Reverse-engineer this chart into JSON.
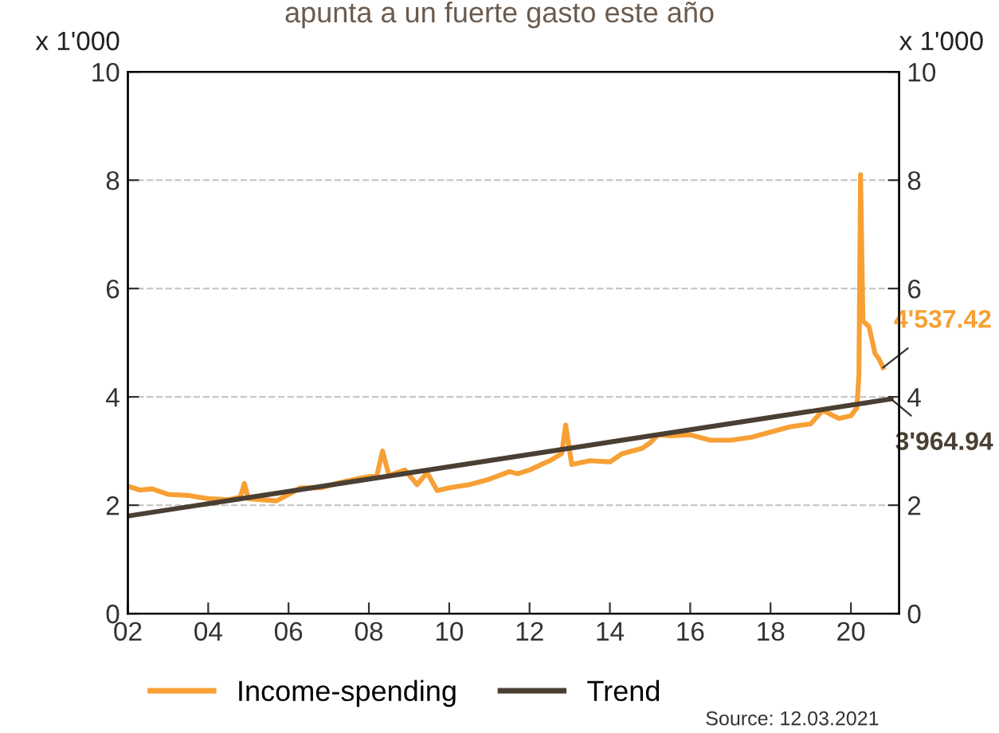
{
  "chart_data": {
    "type": "line",
    "title": "apunta a un fuerte gasto este año",
    "ylabel": "x 1'000",
    "y2label": "x 1'000",
    "xlim": [
      2002,
      2021.2
    ],
    "xticks": [
      {
        "value": 2002,
        "label": "02"
      },
      {
        "value": 2004,
        "label": "04"
      },
      {
        "value": 2006,
        "label": "06"
      },
      {
        "value": 2008,
        "label": "08"
      },
      {
        "value": 2010,
        "label": "10"
      },
      {
        "value": 2012,
        "label": "12"
      },
      {
        "value": 2014,
        "label": "14"
      },
      {
        "value": 2016,
        "label": "16"
      },
      {
        "value": 2018,
        "label": "18"
      },
      {
        "value": 2020,
        "label": "20"
      }
    ],
    "ylim": [
      0,
      10
    ],
    "yticks": [
      0,
      2,
      4,
      6,
      8,
      10
    ],
    "y2lim": [
      0,
      10
    ],
    "y2ticks": [
      0,
      2,
      4,
      6,
      8,
      10
    ],
    "grid": "y",
    "legend": "bottom",
    "marker": "none",
    "line_style": "solid",
    "series": [
      {
        "name": "Income-spending",
        "color": "#f7a035",
        "x": [
          2002.0,
          2002.3,
          2002.6,
          2003.0,
          2003.5,
          2004.0,
          2004.5,
          2004.8,
          2004.9,
          2005.0,
          2005.7,
          2006.0,
          2006.3,
          2006.8,
          2007.3,
          2007.8,
          2008.2,
          2008.34,
          2008.5,
          2008.9,
          2009.2,
          2009.45,
          2009.7,
          2010.0,
          2010.5,
          2011.0,
          2011.5,
          2011.7,
          2012.0,
          2012.5,
          2012.8,
          2012.9,
          2013.05,
          2013.5,
          2014.0,
          2014.3,
          2014.8,
          2015.0,
          2015.2,
          2015.5,
          2016.0,
          2016.5,
          2017.0,
          2017.5,
          2018.0,
          2018.5,
          2019.0,
          2019.3,
          2019.7,
          2020.0,
          2020.15,
          2020.2,
          2020.24,
          2020.3,
          2020.45,
          2020.6,
          2020.7,
          2020.8
        ],
        "values": [
          2.35,
          2.28,
          2.3,
          2.2,
          2.18,
          2.12,
          2.1,
          2.15,
          2.4,
          2.12,
          2.08,
          2.2,
          2.32,
          2.32,
          2.42,
          2.5,
          2.55,
          3.0,
          2.55,
          2.65,
          2.38,
          2.6,
          2.27,
          2.32,
          2.38,
          2.48,
          2.62,
          2.58,
          2.65,
          2.82,
          2.95,
          3.48,
          2.75,
          2.82,
          2.8,
          2.95,
          3.05,
          3.15,
          3.3,
          3.28,
          3.3,
          3.2,
          3.2,
          3.25,
          3.35,
          3.45,
          3.5,
          3.75,
          3.6,
          3.65,
          3.8,
          4.4,
          8.1,
          5.4,
          5.3,
          4.8,
          4.7,
          4.54
        ]
      },
      {
        "name": "Trend",
        "color": "#4a3f32",
        "x": [
          2002.0,
          2021.0
        ],
        "values": [
          1.8,
          3.96
        ]
      }
    ],
    "annotations": [
      {
        "text": "4'537.42",
        "x": 2020.8,
        "y": 4.54
      },
      {
        "text": "3'964.94",
        "x": 2021.0,
        "y": 3.96
      },
      "Source: 12.03.2021"
    ]
  }
}
